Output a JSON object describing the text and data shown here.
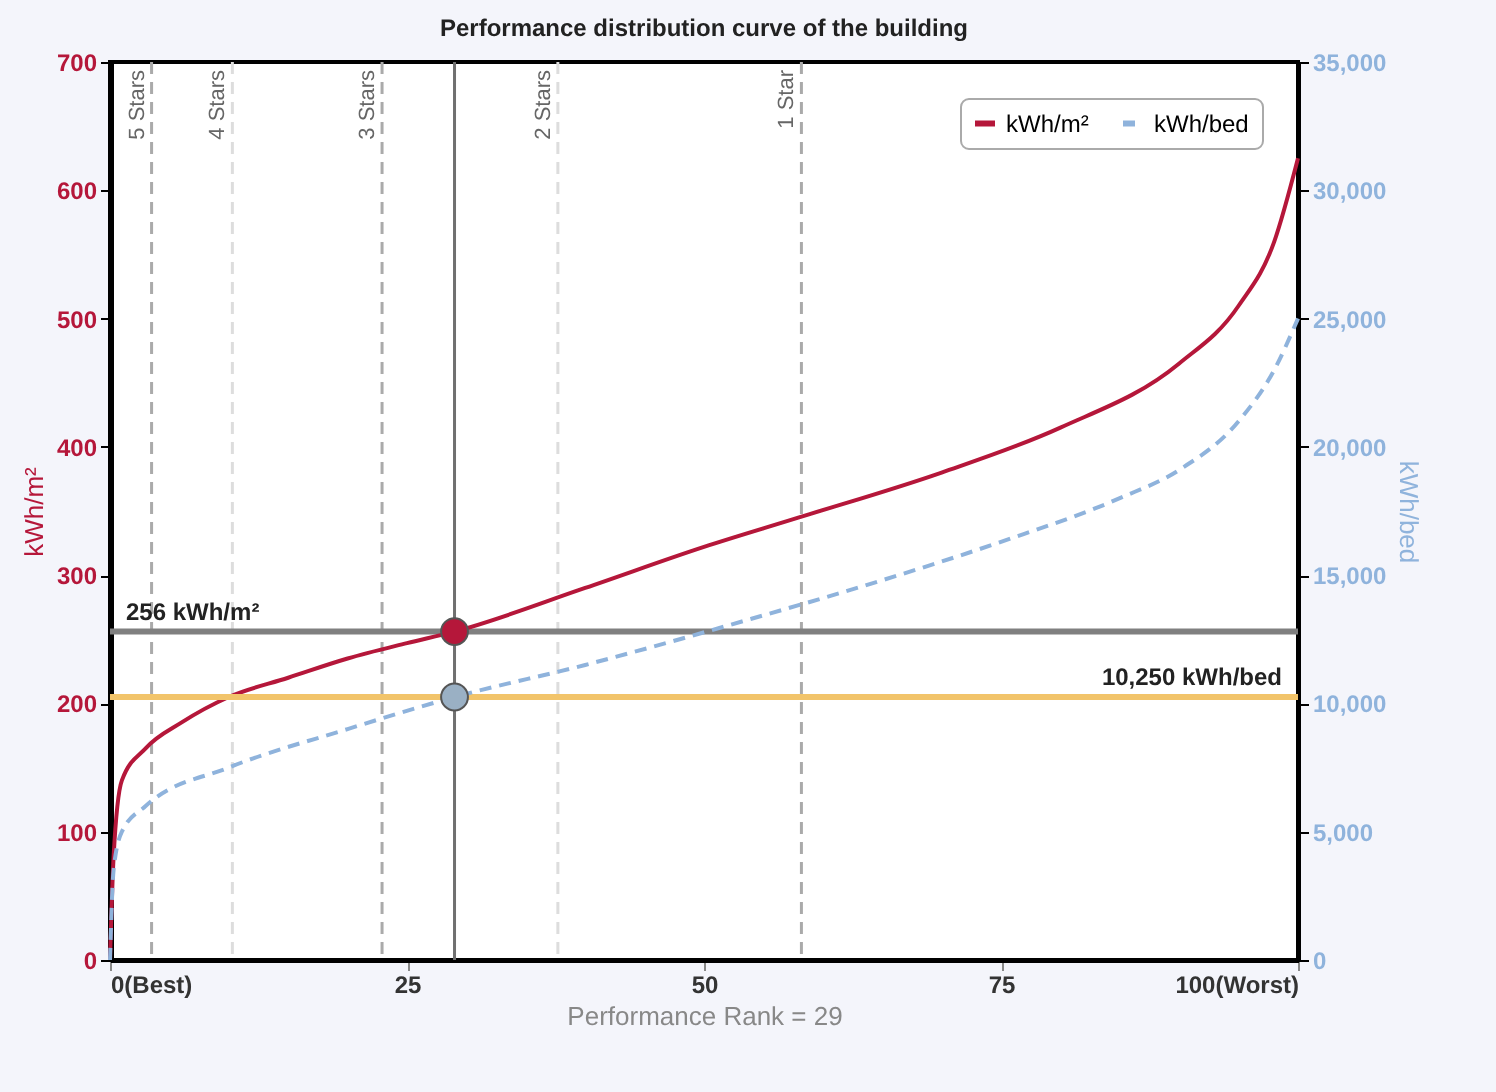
{
  "chart_data": {
    "type": "line",
    "title": "Performance distribution curve of the building",
    "xlabel": "Performance Rank = 29",
    "ylabel": "kWh/m²",
    "y2label": "kWh/bed",
    "xlim": [
      0,
      100
    ],
    "xticks": [
      {
        "value": 0,
        "label": "0(Best)"
      },
      25,
      50,
      75,
      {
        "value": 100,
        "label": "100(Worst)"
      }
    ],
    "ylim": [
      0,
      700
    ],
    "yticks": [
      0,
      100,
      200,
      300,
      400,
      500,
      600,
      700
    ],
    "y2lim": [
      0,
      35000
    ],
    "y2ticks": [
      {
        "value": 0,
        "label": "0"
      },
      {
        "value": 5000,
        "label": "5,000"
      },
      {
        "value": 10000,
        "label": "10,000"
      },
      {
        "value": 15000,
        "label": "15,000"
      },
      {
        "value": 20000,
        "label": "20,000"
      },
      {
        "value": 25000,
        "label": "25,000"
      },
      {
        "value": 30000,
        "label": "30,000"
      },
      {
        "value": 35000,
        "label": "35,000"
      }
    ],
    "legend": "top right",
    "series": [
      {
        "name": "kWh/m²",
        "color": "#b5173a",
        "line_style": "solid",
        "x": [
          0,
          0.3,
          1,
          3,
          6,
          10,
          15,
          20,
          25,
          29,
          40,
          50,
          58,
          70,
          80,
          90,
          95,
          98,
          100
        ],
        "values": [
          0,
          80,
          140,
          165,
          185,
          205,
          220,
          235,
          247,
          256,
          290,
          322,
          345,
          380,
          415,
          465,
          510,
          560,
          625
        ]
      },
      {
        "name": "kWh/bed",
        "color": "#8fb3dc",
        "line_style": "dashed",
        "axis": "y2",
        "x": [
          0,
          0.3,
          1,
          3,
          10,
          20,
          29,
          40,
          54,
          65,
          75,
          85,
          90,
          95,
          98,
          100
        ],
        "values": [
          0,
          3500,
          5000,
          6000,
          7500,
          9000,
          10250,
          11500,
          13300,
          14800,
          16300,
          18000,
          19100,
          21000,
          23000,
          25000
        ]
      },
      {
        "type": "scatter",
        "color": "#b5173a",
        "x": [
          29
        ],
        "values": [
          256
        ]
      },
      {
        "type": "scatter",
        "color": "#9ab0c4",
        "axis": "y2",
        "x": [
          29
        ],
        "values": [
          10250
        ]
      }
    ],
    "ref_lines": [
      {
        "axis": "x",
        "value": 3.5,
        "label": "5 Stars",
        "color": "#aaaaaa",
        "line_style": "dashed"
      },
      {
        "axis": "x",
        "value": 10.3,
        "label": "4 Stars",
        "color": "#dddddd",
        "line_style": "dashed"
      },
      {
        "axis": "x",
        "value": 22.9,
        "label": "3 Stars",
        "color": "#aaaaaa",
        "line_style": "dashed"
      },
      {
        "axis": "x",
        "value": 37.7,
        "label": "2 Stars",
        "color": "#dddddd",
        "line_style": "dashed"
      },
      {
        "axis": "x",
        "value": 58.2,
        "label": "1 Star",
        "color": "#aaaaaa",
        "line_style": "dashed"
      },
      {
        "axis": "x",
        "value": 29,
        "label": null,
        "color": "#707070",
        "line_style": "solid"
      },
      {
        "axis": "y",
        "value": 256,
        "label": "256 kWh/m²",
        "color": "#808080",
        "line_style": "solid"
      },
      {
        "axis": "y2",
        "value": 10250,
        "label": "10,250 kWh/bed",
        "color": "#f2c46a",
        "line_style": "solid"
      }
    ]
  }
}
